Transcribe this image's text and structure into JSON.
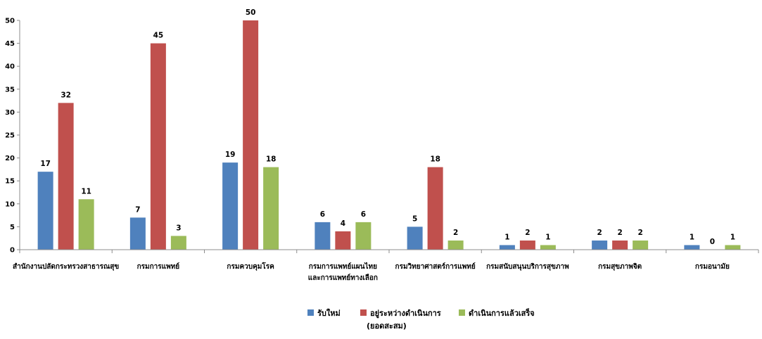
{
  "chart_data": {
    "type": "bar",
    "ylim": [
      0,
      50
    ],
    "yticks": [
      0,
      5,
      10,
      15,
      20,
      25,
      30,
      35,
      40,
      45,
      50
    ],
    "grid": false,
    "legend_position": "bottom",
    "categories": [
      [
        "สำนักงานปลัดกระทรวงสาธารณสุข"
      ],
      [
        "กรมการแพทย์"
      ],
      [
        "กรมควบคุมโรค"
      ],
      [
        "กรมการแพทย์แผนไทย",
        "และการแพทย์ทางเลือก"
      ],
      [
        "กรมวิทยาศาสตร์การแพทย์"
      ],
      [
        "กรมสนับสนุนบริการสุขภาพ"
      ],
      [
        "กรมสุขภาพจิต"
      ],
      [
        "กรมอนามัย"
      ]
    ],
    "series": [
      {
        "name": [
          "รับใหม่"
        ],
        "color": "#4F81BD",
        "values": [
          17,
          7,
          19,
          6,
          5,
          1,
          2,
          1
        ]
      },
      {
        "name": [
          "อยู่ระหว่างดำเนินการ",
          "(ยอดสะสม)"
        ],
        "color": "#C0504D",
        "values": [
          32,
          45,
          50,
          4,
          18,
          2,
          2,
          0
        ]
      },
      {
        "name": [
          "ดำเนินการแล้วเสร็จ"
        ],
        "color": "#9BBB59",
        "values": [
          11,
          3,
          18,
          6,
          2,
          1,
          2,
          1
        ]
      }
    ]
  }
}
